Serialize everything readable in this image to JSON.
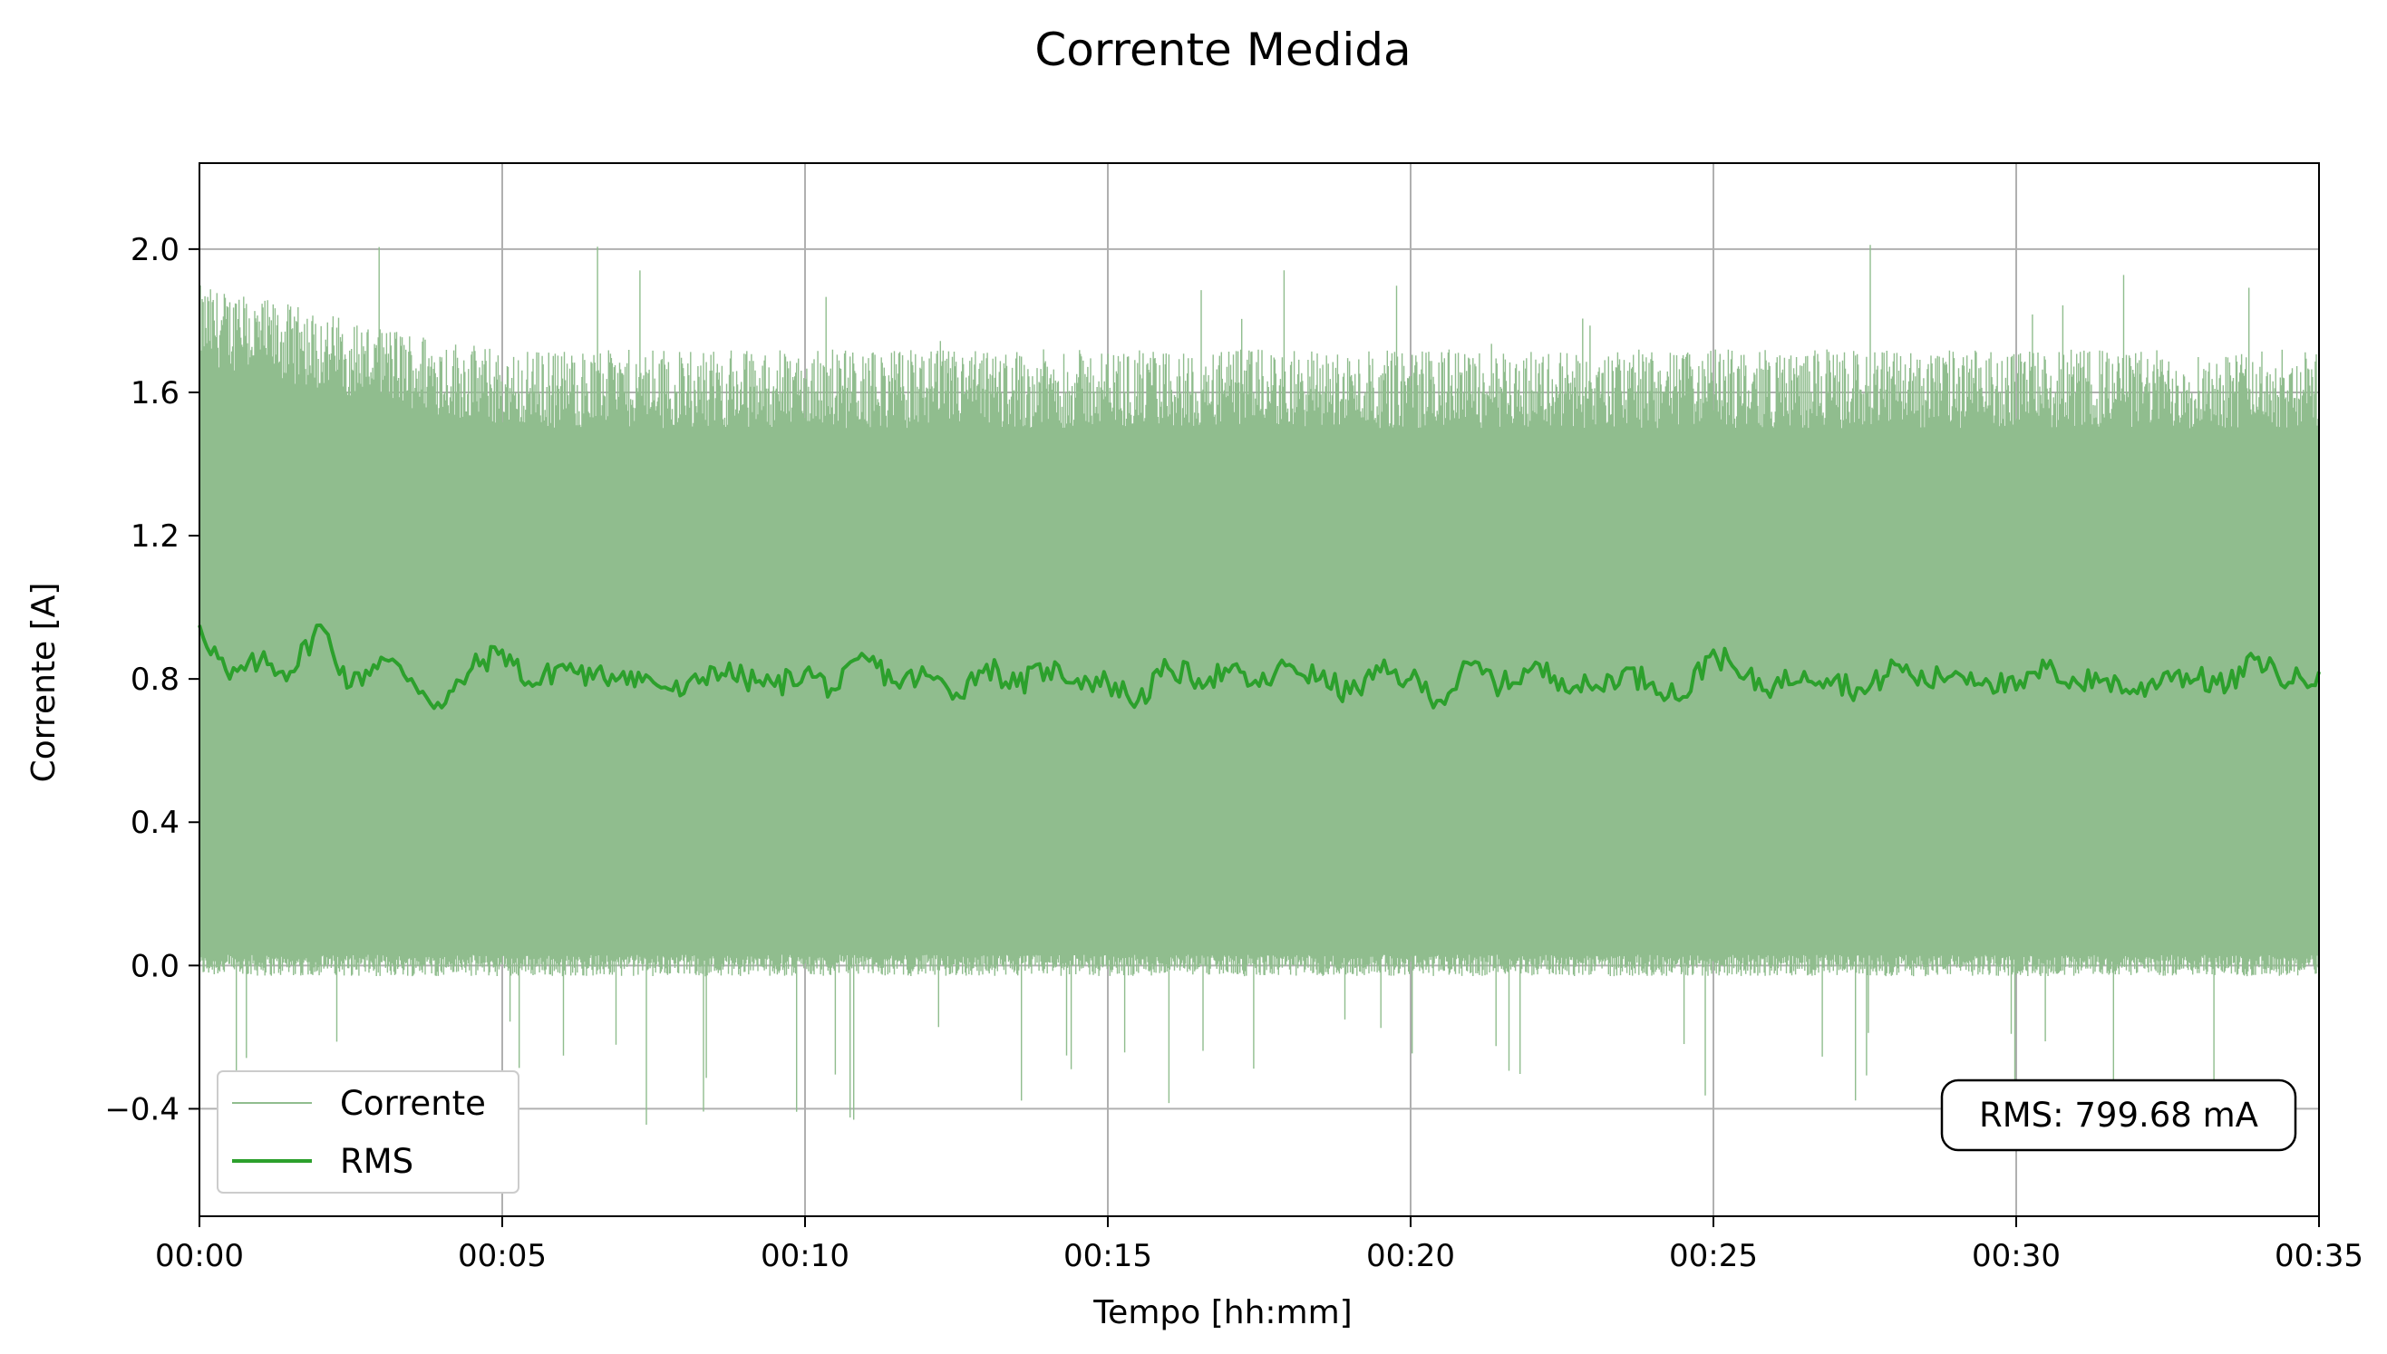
{
  "chart_data": {
    "type": "line",
    "title": "Corrente Medida",
    "xlabel": "Tempo [hh:mm]",
    "ylabel": "Corrente [A]",
    "xlim": [
      0,
      35
    ],
    "ylim": [
      -0.7,
      2.24
    ],
    "xticks": [
      0,
      5,
      10,
      15,
      20,
      25,
      30,
      35
    ],
    "xtick_labels": [
      "00:00",
      "00:05",
      "00:10",
      "00:15",
      "00:20",
      "00:25",
      "00:30",
      "00:35"
    ],
    "yticks": [
      -0.4,
      0.0,
      0.4,
      0.8,
      1.2,
      1.6,
      2.0
    ],
    "ytick_labels": [
      "−0.4",
      "0.0",
      "0.4",
      "0.8",
      "1.2",
      "1.6",
      "2.0"
    ],
    "grid": true,
    "legend_position": "lower-left",
    "series": [
      {
        "name": "Corrente",
        "color": "#90bd8e",
        "style": "thin noisy signal, dense band",
        "band_typical": [
          0.0,
          1.6
        ],
        "band_peak": [
          -0.45,
          2.02
        ]
      },
      {
        "name": "RMS",
        "color": "#2ca02c",
        "x": [
          0.0,
          0.5,
          1.0,
          1.5,
          2.0,
          2.5,
          3.0,
          3.5,
          4.0,
          4.5,
          5.0,
          5.5,
          6.0,
          6.5,
          7.0,
          7.5,
          8.0,
          8.5,
          9.0,
          9.5,
          10.0,
          10.5,
          11.0,
          11.5,
          12.0,
          12.5,
          13.0,
          13.5,
          14.0,
          14.5,
          15.0,
          15.5,
          16.0,
          16.5,
          17.0,
          17.5,
          18.0,
          18.5,
          19.0,
          19.5,
          20.0,
          20.5,
          21.0,
          21.5,
          22.0,
          22.5,
          23.0,
          23.5,
          24.0,
          24.5,
          25.0,
          25.5,
          26.0,
          26.5,
          27.0,
          27.5,
          28.0,
          28.5,
          29.0,
          29.5,
          30.0,
          30.5,
          31.0,
          31.5,
          32.0,
          32.5,
          33.0,
          33.5,
          34.0,
          34.5,
          35.0
        ],
        "values": [
          0.95,
          0.8,
          0.85,
          0.82,
          0.95,
          0.78,
          0.86,
          0.8,
          0.72,
          0.83,
          0.88,
          0.78,
          0.84,
          0.8,
          0.82,
          0.79,
          0.76,
          0.83,
          0.8,
          0.78,
          0.82,
          0.77,
          0.86,
          0.79,
          0.81,
          0.76,
          0.84,
          0.78,
          0.83,
          0.8,
          0.79,
          0.74,
          0.83,
          0.8,
          0.82,
          0.78,
          0.84,
          0.8,
          0.76,
          0.82,
          0.8,
          0.74,
          0.84,
          0.78,
          0.83,
          0.8,
          0.77,
          0.82,
          0.79,
          0.75,
          0.88,
          0.8,
          0.78,
          0.82,
          0.8,
          0.76,
          0.84,
          0.79,
          0.82,
          0.8,
          0.77,
          0.83,
          0.79,
          0.8,
          0.76,
          0.82,
          0.8,
          0.78,
          0.86,
          0.79,
          0.82
        ]
      }
    ],
    "annotation": {
      "text": "RMS: 799.68 mA",
      "position": "lower-right"
    }
  }
}
